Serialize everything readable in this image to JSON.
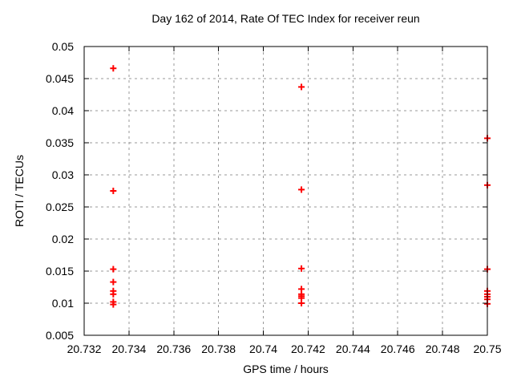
{
  "chart_data": {
    "type": "scatter",
    "title": "Day 162 of 2014, Rate Of TEC Index for receiver reun",
    "xlabel": "GPS time / hours",
    "ylabel": "ROTI / TECUs",
    "xlim": [
      20.732,
      20.75
    ],
    "ylim": [
      0.005,
      0.05
    ],
    "xticks": [
      20.732,
      20.734,
      20.736,
      20.738,
      20.74,
      20.742,
      20.744,
      20.746,
      20.748,
      20.75
    ],
    "xtick_labels": [
      "20.732",
      "20.734",
      "20.736",
      "20.738",
      "20.74",
      "20.742",
      "20.744",
      "20.746",
      "20.748",
      "20.75"
    ],
    "yticks": [
      0.005,
      0.01,
      0.015,
      0.02,
      0.025,
      0.03,
      0.035,
      0.04,
      0.045,
      0.05
    ],
    "ytick_labels": [
      "0.005",
      "0.01",
      "0.015",
      "0.02",
      "0.025",
      "0.03",
      "0.035",
      "0.04",
      "0.045",
      "0.05"
    ],
    "grid": true,
    "legend": "none",
    "marker": "plus",
    "marker_color": "#ff0000",
    "grid_color": "#999999",
    "axis_color": "#000000",
    "series": [
      {
        "name": "ROTI",
        "points": [
          [
            20.7333,
            0.0466
          ],
          [
            20.7333,
            0.0275
          ],
          [
            20.7333,
            0.0153
          ],
          [
            20.7333,
            0.0133
          ],
          [
            20.7333,
            0.0119
          ],
          [
            20.7333,
            0.0114
          ],
          [
            20.7333,
            0.0102
          ],
          [
            20.7333,
            0.0098
          ],
          [
            20.7417,
            0.0437
          ],
          [
            20.7417,
            0.0277
          ],
          [
            20.7417,
            0.0154
          ],
          [
            20.7417,
            0.0122
          ],
          [
            20.7417,
            0.0114
          ],
          [
            20.7417,
            0.0111
          ],
          [
            20.7417,
            0.0108
          ],
          [
            20.7417,
            0.01
          ],
          [
            20.75,
            0.0357
          ],
          [
            20.75,
            0.0284
          ],
          [
            20.75,
            0.0153
          ],
          [
            20.75,
            0.0119
          ],
          [
            20.75,
            0.0114
          ],
          [
            20.75,
            0.011
          ],
          [
            20.75,
            0.0106
          ],
          [
            20.75,
            0.0099
          ]
        ]
      }
    ]
  }
}
